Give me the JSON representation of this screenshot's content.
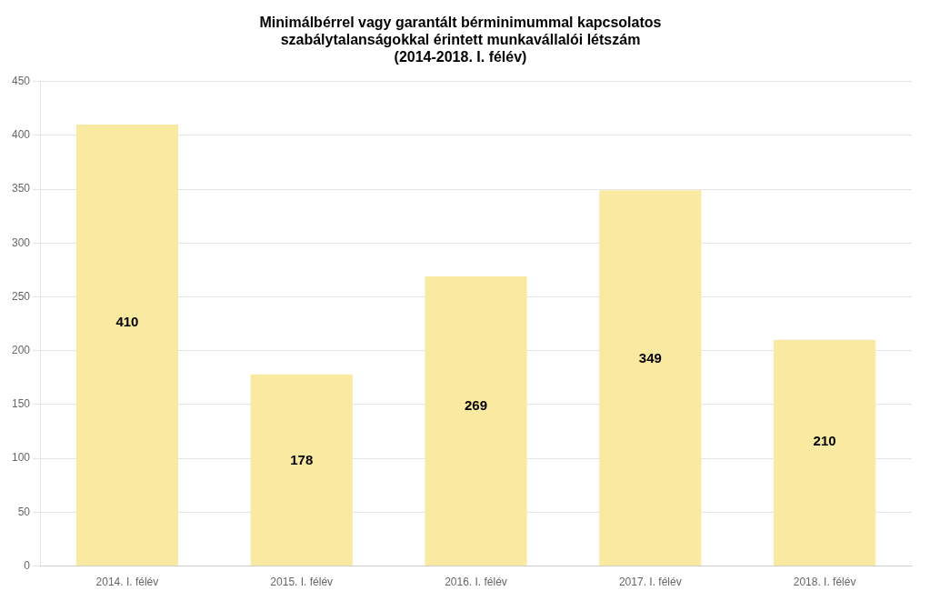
{
  "chart_data": {
    "type": "bar",
    "title": "Minimálbérrel vagy garantált bérminimummal kapcsolatos\nszabálytalanságokkal érintett munkavállalói létszám\n(2014-2018. I. félév)",
    "categories": [
      "2014. I. félév",
      "2015. I. félév",
      "2016. I. félév",
      "2017. I. félév",
      "2018. I. félév"
    ],
    "values": [
      410,
      178,
      269,
      349,
      210
    ],
    "color": "#FAE9A0",
    "ylim": [
      0,
      450
    ],
    "yticks": [
      0,
      50,
      100,
      150,
      200,
      250,
      300,
      350,
      400,
      450
    ],
    "grid": true,
    "data_labels": true
  }
}
